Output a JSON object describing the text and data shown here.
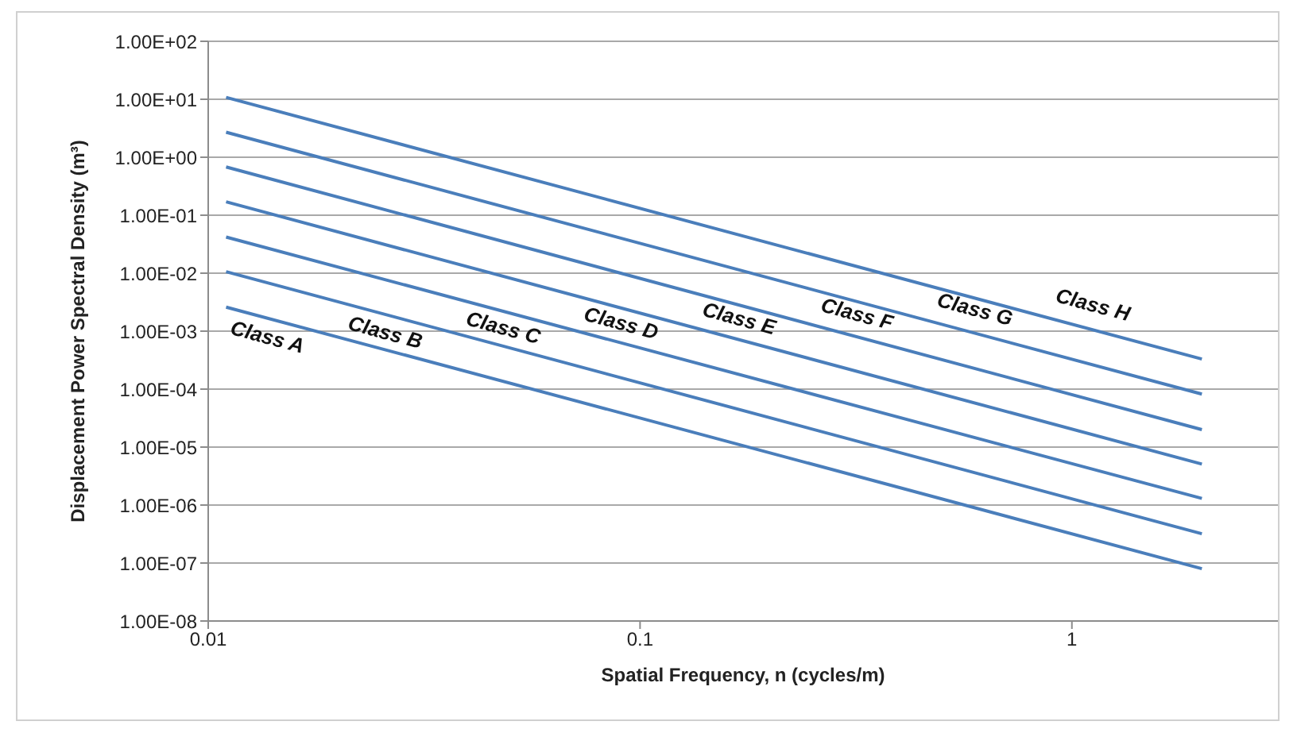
{
  "chart_data": {
    "type": "line",
    "xlabel": "Spatial Frequency, n (cycles/m)",
    "ylabel": "Displacement Power Spectral Density (m³)",
    "x": [
      0.011,
      2
    ],
    "series": [
      {
        "color": "#4a7ebb",
        "values": [
          0.0026,
          8e-08
        ]
      },
      {
        "color": "#4a7ebb",
        "values": [
          0.0106,
          3.2e-07
        ]
      },
      {
        "color": "#4a7ebb",
        "values": [
          0.042,
          1.3e-06
        ]
      },
      {
        "color": "#4a7ebb",
        "values": [
          0.17,
          5.1e-06
        ]
      },
      {
        "color": "#4a7ebb",
        "values": [
          0.68,
          2e-05
        ]
      },
      {
        "color": "#4a7ebb",
        "values": [
          2.7,
          8.2e-05
        ]
      },
      {
        "color": "#4a7ebb",
        "values": [
          10.8,
          0.00033
        ]
      }
    ],
    "log": "xy",
    "xlim": [
      0.01,
      3
    ],
    "xticks": [
      0.01,
      0.1,
      1
    ],
    "ylim": [
      1e-08,
      100
    ],
    "yticks": [
      {
        "value": 1e-08,
        "label": "1.00E-08"
      },
      {
        "value": 1e-07,
        "label": "1.00E-07"
      },
      {
        "value": 1e-06,
        "label": "1.00E-06"
      },
      {
        "value": 1e-05,
        "label": "1.00E-05"
      },
      {
        "value": 0.0001,
        "label": "1.00E-04"
      },
      {
        "value": 0.001,
        "label": "1.00E-03"
      },
      {
        "value": 0.01,
        "label": "1.00E-02"
      },
      {
        "value": 0.1,
        "label": "1.00E-01"
      },
      {
        "value": 1,
        "label": "1.00E+00"
      },
      {
        "value": 10,
        "label": "1.00E+01"
      },
      {
        "value": 100,
        "label": "1.00E+02"
      }
    ],
    "grid": "y",
    "marker": "none",
    "line_style": "solid",
    "annotations": [
      "Class A",
      "Class B",
      "Class C",
      "Class D",
      "Class E",
      "Class F",
      "Class G",
      "Class H"
    ]
  }
}
